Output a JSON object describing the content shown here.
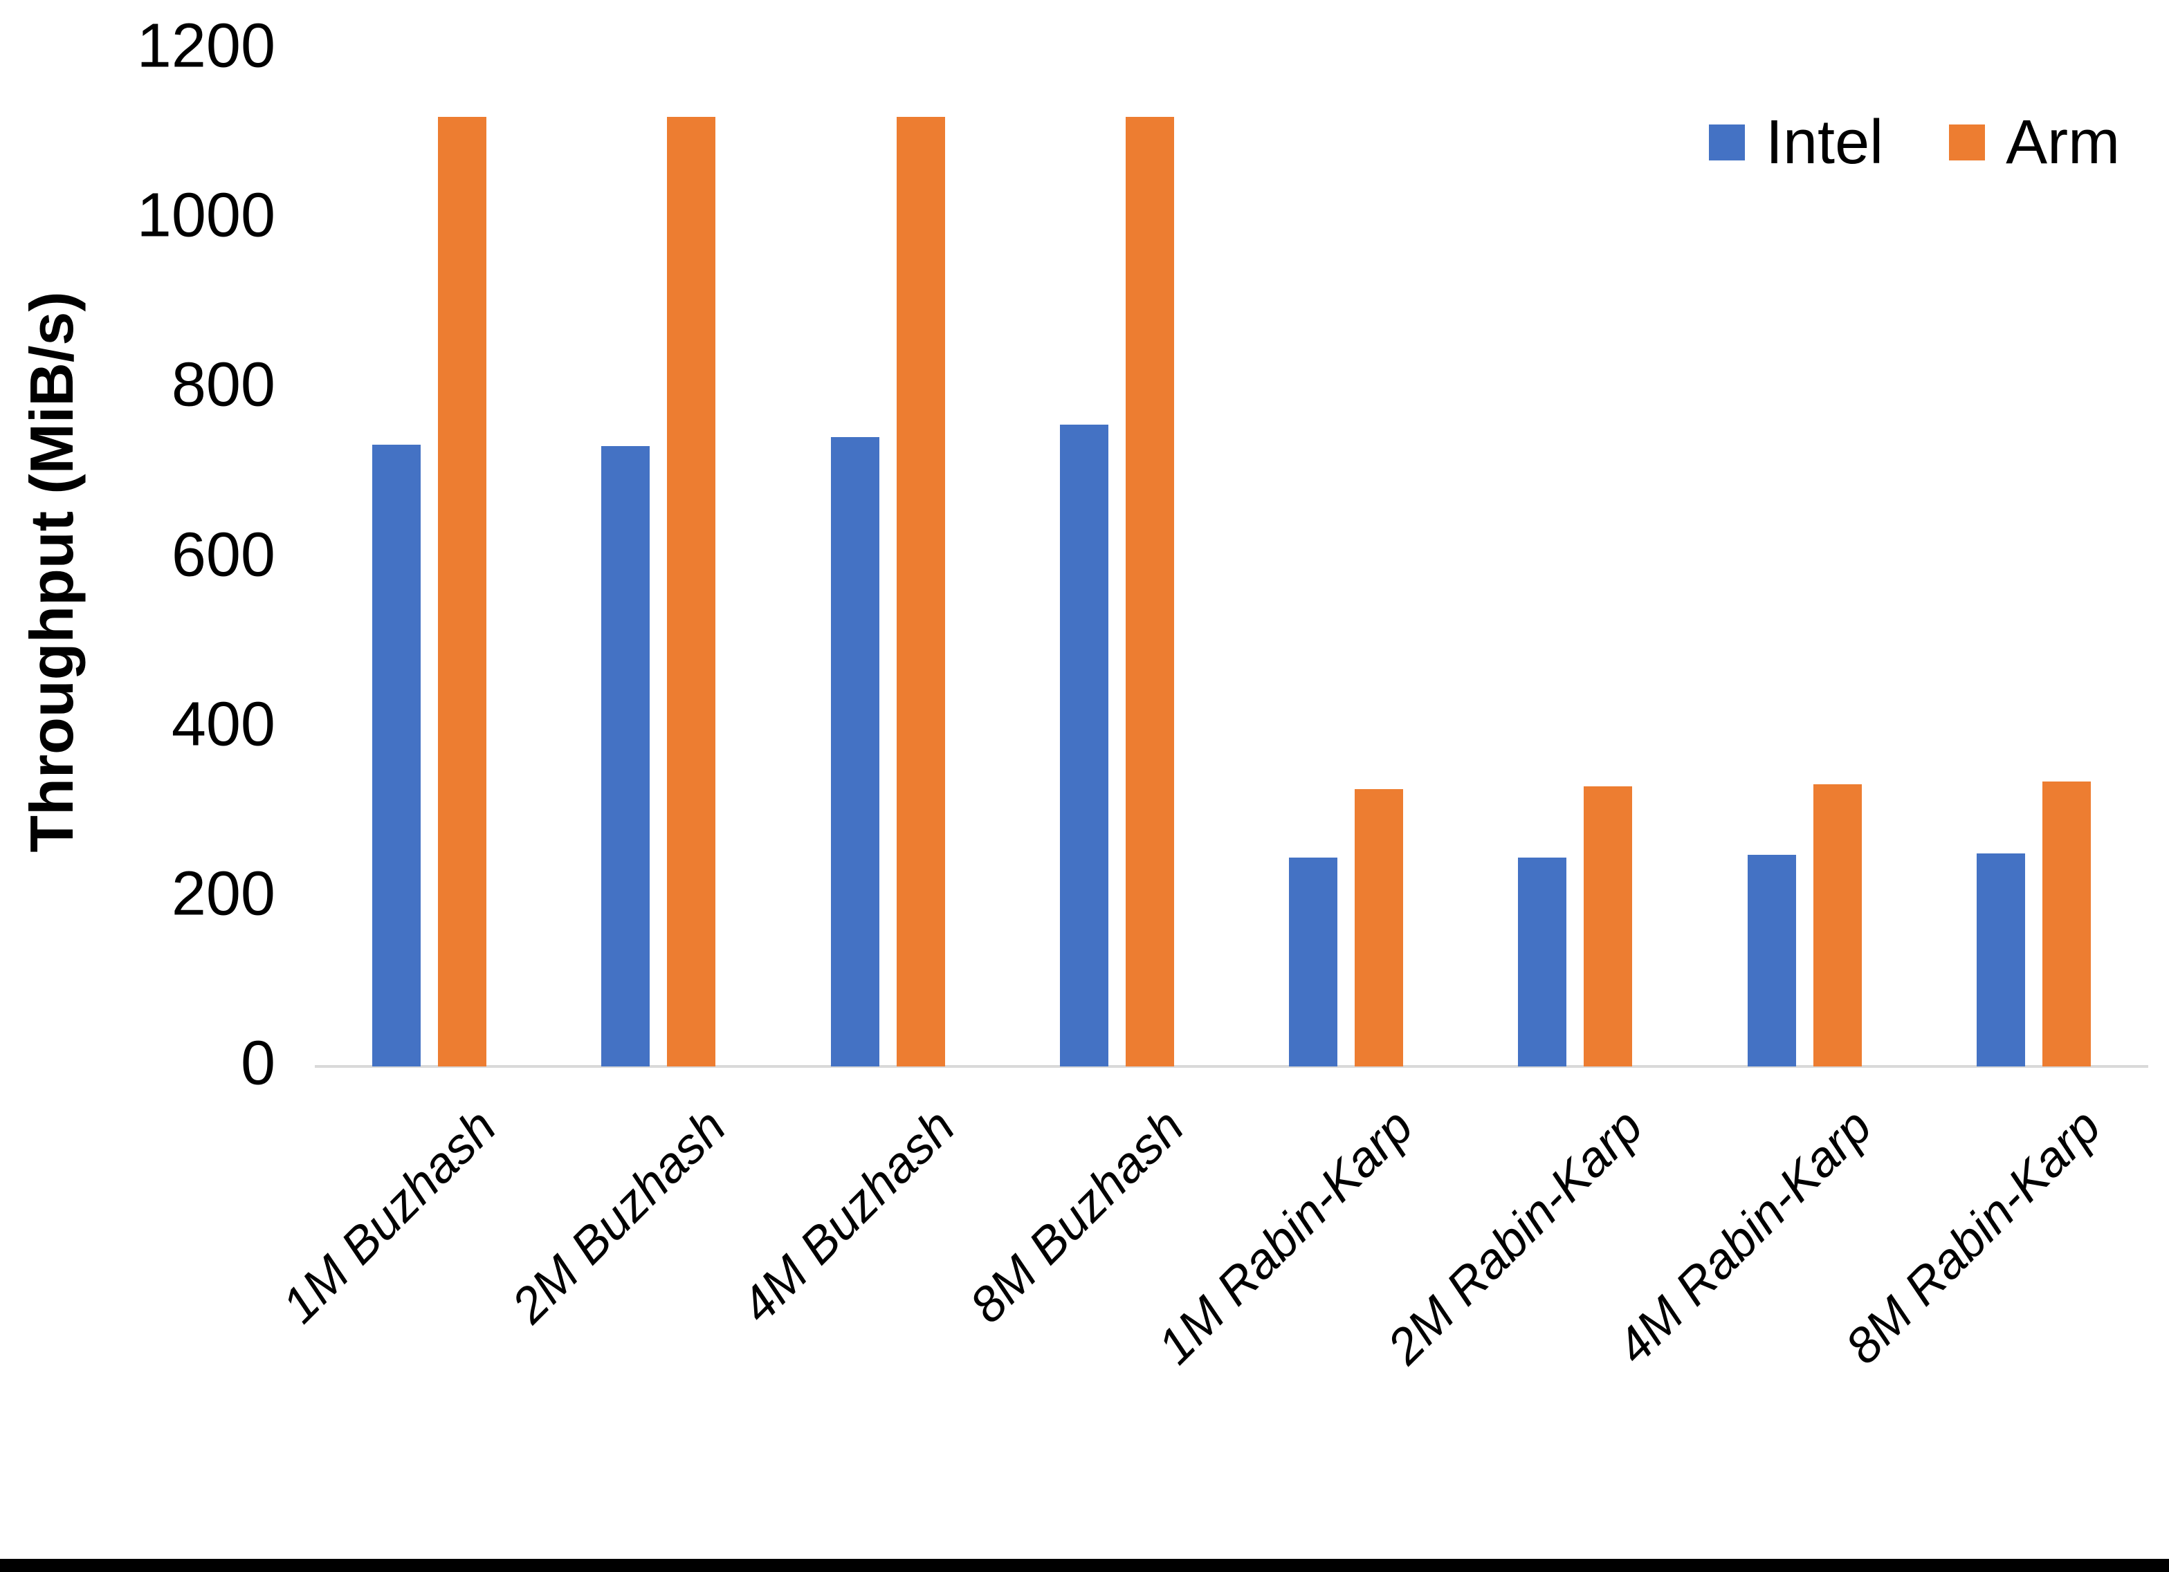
{
  "chart_data": {
    "type": "bar",
    "title": "",
    "xlabel": "",
    "ylabel": "Throughput (MiB/s)",
    "ylim": [
      0,
      1200
    ],
    "ytick_labels": [
      "0",
      "200",
      "400",
      "600",
      "800",
      "1000",
      "1200"
    ],
    "grid": false,
    "legend_position": "top-right",
    "categories": [
      "1M Buzhash",
      "2M Buzhash",
      "4M Buzhash",
      "8M Buzhash",
      "1M Rabin-Karp",
      "2M Rabin-Karp",
      "4M Rabin-Karp",
      "8M Rabin-Karp"
    ],
    "series": [
      {
        "name": "Intel",
        "color": "#4472C4",
        "values": [
          733,
          732,
          742,
          757,
          246,
          246,
          250,
          251
        ]
      },
      {
        "name": "Arm",
        "color": "#ED7D31",
        "values": [
          1120,
          1120,
          1120,
          1120,
          327,
          330,
          333,
          336
        ]
      }
    ]
  },
  "colors": {
    "intel": "#4472C4",
    "arm": "#ED7D31",
    "axis_line": "#d9d9d9",
    "text": "#000000",
    "bottom_border": "#000000"
  }
}
